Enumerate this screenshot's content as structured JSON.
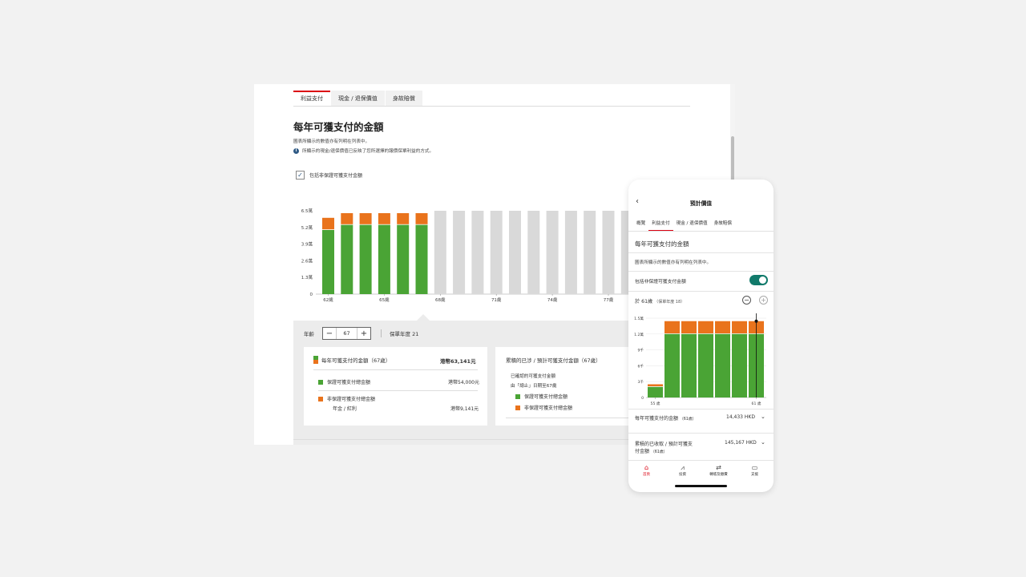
{
  "desktop": {
    "tabs": [
      {
        "label": "利益支付",
        "active": true
      },
      {
        "label": "現金 / 退保價值",
        "active": false
      },
      {
        "label": "身故賠償",
        "active": false
      }
    ],
    "title": "每年可獲支付的金額",
    "note1": "圖表所顯示的數值亦有列明在列表中。",
    "note2": "所顯示的現金/退保價值已反映了您所選擇的報價保單利益的方式。",
    "checkbox_label": "包括非保證可獲支付金額",
    "age_label": "年齡",
    "age_value": "67",
    "policy_year_label": "保單年度 21",
    "card_a": {
      "title": "每年可獲支付的金額（67歲）",
      "total": "港幣63,141元",
      "guaranteed_label": "保證可獲支付總金額",
      "guaranteed_value": "港幣54,000元",
      "non_guaranteed_label": "非保證可獲支付總金額",
      "annuity_label": "年金 / 紅利",
      "annuity_value": "港幣9,141元"
    },
    "card_b": {
      "title": "累積的已涉 / 預計可獲支付金額（67歲）",
      "line1": "已確認的可獲支付金額",
      "line2": "由「總止」日期至67歲",
      "guaranteed_label": "保證可獲支付總金額",
      "non_guaranteed_label": "非保證可獲支付總金額"
    }
  },
  "chart_data": [
    {
      "type": "bar",
      "stacked": true,
      "yticks": [
        "0",
        "1.3萬",
        "2.6萬",
        "3.9萬",
        "5.2萬",
        "6.5萬"
      ],
      "ylim": [
        0,
        65000
      ],
      "xticks": [
        {
          "index": 0,
          "label": "62歲"
        },
        {
          "index": 3,
          "label": "65歲"
        },
        {
          "index": 6,
          "label": "68歲"
        },
        {
          "index": 9,
          "label": "71歲"
        },
        {
          "index": 12,
          "label": "74歲"
        },
        {
          "index": 15,
          "label": "77歲"
        }
      ],
      "series": [
        {
          "name": "保證可獲支付總金額",
          "color": "#4aa435",
          "values": [
            50000,
            54000,
            54000,
            54000,
            54000,
            54000
          ]
        },
        {
          "name": "非保證可獲支付總金額",
          "color": "#e9731c",
          "values": [
            9500,
            9141,
            9141,
            9141,
            9141,
            9141
          ]
        }
      ],
      "future_bars": 11,
      "future_value": 65000,
      "future_color": "#d9d9d9"
    },
    {
      "type": "bar",
      "stacked": true,
      "yticks": [
        "0",
        "3千",
        "6千",
        "9千",
        "1.2萬",
        "1.5萬"
      ],
      "ylim": [
        0,
        15000
      ],
      "xticks": [
        {
          "index": 0,
          "label": "55 歲"
        },
        {
          "index": 6,
          "label": "61 歲"
        }
      ],
      "series": [
        {
          "name": "保證可獲支付總金額",
          "color": "#4aa435",
          "values": [
            2000,
            12000,
            12000,
            12000,
            12000,
            12000,
            12000
          ]
        },
        {
          "name": "非保證可獲支付總金額",
          "color": "#e9731c",
          "values": [
            500,
            2433,
            2433,
            2433,
            2433,
            2433,
            2433
          ]
        }
      ]
    }
  ],
  "phone": {
    "title": "預計價值",
    "tabs": [
      {
        "label": "概覽",
        "active": false
      },
      {
        "label": "利益支付",
        "active": true
      },
      {
        "label": "現金 / 退保價值",
        "active": false
      },
      {
        "label": "身故賠償",
        "active": false
      }
    ],
    "heading": "每年可獲支付的金額",
    "note": "圖表所顯示的數值亦有列明在列表中。",
    "toggle_label": "包括非保證可獲支付金額",
    "age_line": "於 61歲",
    "age_policy_year": "（保單年度 18）",
    "row1_label": "每年可獲支付的金額",
    "row1_sub": "（61歲）",
    "row1_value": "14,433 HKD",
    "row2_label": "累積的已收取 / 預計可獲支",
    "row2_label_2": "付金額",
    "row2_sub": "（61歲）",
    "row2_value": "145,167 HKD",
    "nav": [
      {
        "label": "首頁",
        "icon": "home-icon",
        "active": true
      },
      {
        "label": "投資",
        "icon": "chart-icon",
        "active": false
      },
      {
        "label": "轉賬及繳費",
        "icon": "transfer-icon",
        "active": false
      },
      {
        "label": "支援",
        "icon": "message-icon",
        "active": false
      }
    ]
  }
}
